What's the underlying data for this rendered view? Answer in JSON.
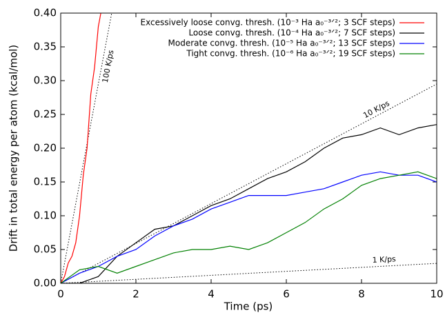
{
  "chart_data": {
    "type": "line",
    "xlabel": "Time (ps)",
    "ylabel": "Drift in total energy per atom (kcal/mol)",
    "xlim": [
      0,
      10
    ],
    "ylim": [
      0,
      0.4
    ],
    "xticks": [
      0,
      2,
      4,
      6,
      8,
      10
    ],
    "yticks": [
      {
        "value": 0,
        "label": "0.00"
      },
      {
        "value": 0.05,
        "label": "0.05"
      },
      {
        "value": 0.1,
        "label": "0.10"
      },
      {
        "value": 0.15,
        "label": "0.15"
      },
      {
        "value": 0.2,
        "label": "0.20"
      },
      {
        "value": 0.25,
        "label": "0.25"
      },
      {
        "value": 0.3,
        "label": "0.30"
      },
      {
        "value": 0.35,
        "label": "0.35"
      },
      {
        "value": 0.4,
        "label": "0.40"
      }
    ],
    "legend": "upper right",
    "series": [
      {
        "name": "Excessively loose convg. thresh. (10⁻³ Ha a₀⁻³ᐟ²;  3 SCF steps)",
        "color": "#ff0000",
        "x": [
          0,
          0.1,
          0.2,
          0.3,
          0.4,
          0.5,
          0.6,
          0.7,
          0.8,
          0.9,
          1.0,
          1.1,
          1.2
        ],
        "values": [
          0,
          0.01,
          0.03,
          0.04,
          0.06,
          0.1,
          0.16,
          0.2,
          0.28,
          0.32,
          0.38,
          0.41,
          0.42
        ]
      },
      {
        "name": "Loose convg. thresh. (10⁻⁴ Ha a₀⁻³ᐟ²;  7 SCF steps)",
        "color": "#000000",
        "x": [
          0,
          0.5,
          1,
          1.5,
          2,
          2.5,
          3,
          3.5,
          4,
          4.5,
          5,
          5.5,
          6,
          6.5,
          7,
          7.5,
          8,
          8.5,
          9,
          9.5,
          10
        ],
        "values": [
          0,
          0,
          0.01,
          0.04,
          0.06,
          0.08,
          0.085,
          0.1,
          0.115,
          0.125,
          0.14,
          0.155,
          0.165,
          0.18,
          0.2,
          0.215,
          0.22,
          0.23,
          0.22,
          0.23,
          0.235
        ]
      },
      {
        "name": "Moderate convg. thresh. (10⁻⁵ Ha a₀⁻³ᐟ²; 13 SCF steps)",
        "color": "#0000ff",
        "x": [
          0,
          0.5,
          1,
          1.5,
          2,
          2.5,
          3,
          3.5,
          4,
          4.5,
          5,
          5.5,
          6,
          6.5,
          7,
          7.5,
          8,
          8.5,
          9,
          9.5,
          10
        ],
        "values": [
          0,
          0.015,
          0.025,
          0.04,
          0.05,
          0.07,
          0.085,
          0.095,
          0.11,
          0.12,
          0.13,
          0.13,
          0.13,
          0.135,
          0.14,
          0.15,
          0.16,
          0.165,
          0.16,
          0.16,
          0.15
        ]
      },
      {
        "name": "Tight convg. thresh. (10⁻⁶ Ha a₀⁻³ᐟ²; 19 SCF steps)",
        "color": "#008000",
        "x": [
          0,
          0.5,
          1,
          1.5,
          2,
          2.5,
          3,
          3.5,
          4,
          4.5,
          5,
          5.5,
          6,
          6.5,
          7,
          7.5,
          8,
          8.5,
          9,
          9.5,
          10
        ],
        "values": [
          0,
          0.02,
          0.025,
          0.015,
          0.025,
          0.035,
          0.045,
          0.05,
          0.05,
          0.055,
          0.05,
          0.06,
          0.075,
          0.09,
          0.11,
          0.125,
          0.145,
          0.155,
          0.16,
          0.165,
          0.155
        ]
      }
    ],
    "reference_lines": [
      {
        "label": "100 K/ps",
        "x": [
          0,
          1.356
        ],
        "values": [
          0,
          0.4
        ]
      },
      {
        "label": "10 K/ps",
        "x": [
          0,
          10
        ],
        "values": [
          0,
          0.295
        ]
      },
      {
        "label": "1 K/ps",
        "x": [
          0,
          10
        ],
        "values": [
          0,
          0.0295
        ]
      }
    ]
  }
}
